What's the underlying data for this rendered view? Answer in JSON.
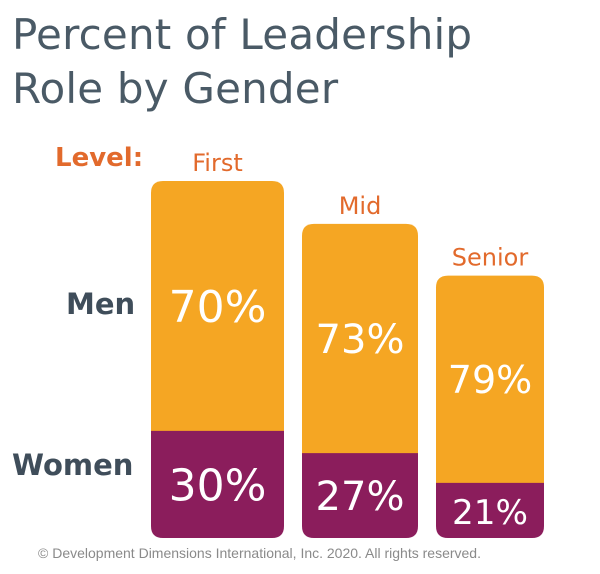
{
  "title_line1": "Percent of Leadership",
  "title_line2": "Role by Gender",
  "level_label": "Level:",
  "row_labels": {
    "men": "Men",
    "women": "Women"
  },
  "footer": "© Development Dimensions International, Inc. 2020. All rights reserved.",
  "colors": {
    "men": "#f5a623",
    "women": "#8b1d5c",
    "title": "#4a5a66",
    "level": "#e26a2c",
    "row_label": "#3f4d5a",
    "value_text": "#ffffff"
  },
  "chart_data": {
    "type": "bar",
    "stacked": true,
    "categories": [
      "First",
      "Mid",
      "Senior"
    ],
    "series": [
      {
        "name": "Men",
        "values": [
          70,
          73,
          79
        ],
        "labels": [
          "70%",
          "73%",
          "79%"
        ]
      },
      {
        "name": "Women",
        "values": [
          30,
          27,
          21
        ],
        "labels": [
          "30%",
          "27%",
          "21%"
        ]
      }
    ],
    "unit": "%"
  }
}
